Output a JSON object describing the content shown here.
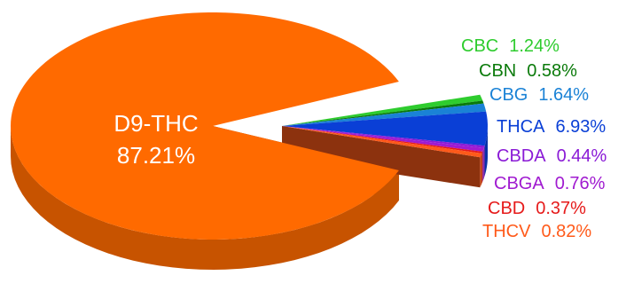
{
  "chart_data": {
    "type": "pie",
    "style": "3d-exploded",
    "slices": [
      {
        "label": "D9-THC",
        "value": 87.21,
        "value_text": "87.21%",
        "color": "#ff6a00"
      },
      {
        "label": "CBC",
        "value": 1.24,
        "value_text": "1.24%",
        "color": "#2ecc2e"
      },
      {
        "label": "CBN",
        "value": 0.58,
        "value_text": "0.58%",
        "color": "#0a7a0a"
      },
      {
        "label": "CBG",
        "value": 1.64,
        "value_text": "1.64%",
        "color": "#1a82d6"
      },
      {
        "label": "THCA",
        "value": 6.93,
        "value_text": "6.93%",
        "color": "#0a3fd6"
      },
      {
        "label": "CBDA",
        "value": 0.44,
        "value_text": "0.44%",
        "color": "#8a1ad6"
      },
      {
        "label": "CBGA",
        "value": 0.76,
        "value_text": "0.76%",
        "color": "#a01ad0"
      },
      {
        "label": "CBD",
        "value": 0.37,
        "value_text": "0.37%",
        "color": "#e61a1a"
      },
      {
        "label": "THCV",
        "value": 0.82,
        "value_text": "0.82%",
        "color": "#ff5a1a"
      }
    ],
    "title": "",
    "legend": "none"
  }
}
